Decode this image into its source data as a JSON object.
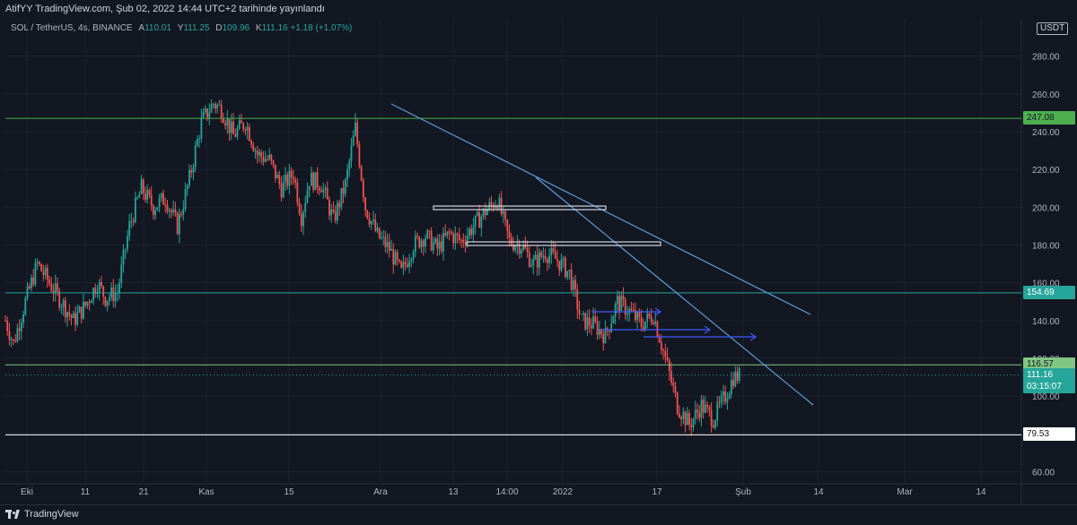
{
  "header": {
    "publish_text": "AtifYY TradingView.com, Şub 02, 2022 14:44 UTC+2 tarihinde yayınlandı"
  },
  "legend": {
    "symbol": "SOL / TetherUS, 4s, BINANCE",
    "open_label": "A",
    "open": "110.01",
    "high_label": "Y",
    "high": "111.25",
    "low_label": "D",
    "low": "109.96",
    "close_label": "K",
    "close": "111.16",
    "change": "+1.18 (+1.07%)"
  },
  "footer": {
    "brand": "TradingView"
  },
  "axis": {
    "currency": "USDT",
    "price_ticks": [
      "60.00",
      "80.00",
      "100.00",
      "120.00",
      "140.00",
      "160.00",
      "180.00",
      "200.00",
      "220.00",
      "240.00",
      "260.00",
      "280.00"
    ],
    "time_ticks": [
      "Eki",
      "11",
      "21",
      "Kas",
      "15",
      "Ara",
      "13",
      "14:00",
      "2022",
      "17",
      "Şub",
      "14",
      "Mar",
      "14"
    ]
  },
  "price_tags": [
    {
      "value": "247.08",
      "color": "#4caf50",
      "text_color": "#131722"
    },
    {
      "value": "154.69",
      "color": "#26a69a",
      "text_color": "#ffffff"
    },
    {
      "value": "116.57",
      "color": "#81c784",
      "text_color": "#131722"
    },
    {
      "value": "111.16",
      "sub": "03:15:07",
      "color": "#26a69a",
      "text_color": "#ffffff"
    },
    {
      "value": "79.53",
      "color": "#ffffff",
      "text_color": "#131722"
    }
  ],
  "chart_data": {
    "type": "candlestick",
    "symbol": "SOL / TetherUS",
    "interval": "4s",
    "exchange": "BINANCE",
    "ylim": [
      55,
      285
    ],
    "grid": true,
    "x_ticks": [
      "Eki",
      "11",
      "21",
      "Kas",
      "15",
      "Ara",
      "13",
      "14:00",
      "2022",
      "17",
      "Şub",
      "14",
      "Mar",
      "14"
    ],
    "path_points": [
      [
        0,
        140
      ],
      [
        4,
        128
      ],
      [
        10,
        150
      ],
      [
        16,
        170
      ],
      [
        22,
        160
      ],
      [
        28,
        150
      ],
      [
        34,
        140
      ],
      [
        40,
        148
      ],
      [
        46,
        160
      ],
      [
        50,
        152
      ],
      [
        56,
        155
      ],
      [
        62,
        190
      ],
      [
        68,
        210
      ],
      [
        74,
        200
      ],
      [
        80,
        205
      ],
      [
        86,
        190
      ],
      [
        92,
        215
      ],
      [
        98,
        245
      ],
      [
        104,
        255
      ],
      [
        108,
        252
      ],
      [
        114,
        238
      ],
      [
        120,
        245
      ],
      [
        126,
        228
      ],
      [
        132,
        225
      ],
      [
        138,
        210
      ],
      [
        144,
        218
      ],
      [
        148,
        195
      ],
      [
        152,
        215
      ],
      [
        158,
        212
      ],
      [
        164,
        193
      ],
      [
        170,
        212
      ],
      [
        175,
        242
      ],
      [
        180,
        200
      ],
      [
        186,
        185
      ],
      [
        192,
        178
      ],
      [
        198,
        165
      ],
      [
        204,
        180
      ],
      [
        210,
        185
      ],
      [
        216,
        178
      ],
      [
        222,
        186
      ],
      [
        228,
        182
      ],
      [
        234,
        190
      ],
      [
        240,
        198
      ],
      [
        246,
        204
      ],
      [
        252,
        182
      ],
      [
        258,
        180
      ],
      [
        264,
        170
      ],
      [
        270,
        176
      ],
      [
        276,
        172
      ],
      [
        282,
        165
      ],
      [
        288,
        140
      ],
      [
        294,
        138
      ],
      [
        300,
        132
      ],
      [
        306,
        150
      ],
      [
        312,
        145
      ],
      [
        318,
        138
      ],
      [
        324,
        143
      ],
      [
        330,
        120
      ],
      [
        336,
        95
      ],
      [
        342,
        85
      ],
      [
        348,
        95
      ],
      [
        354,
        88
      ],
      [
        360,
        100
      ],
      [
        364,
        110
      ],
      [
        368,
        111
      ]
    ],
    "horizontal_levels": [
      {
        "value": 247.08,
        "color": "#4caf50"
      },
      {
        "value": 154.69,
        "color": "#26a69a"
      },
      {
        "value": 116.57,
        "color": "#81c784"
      },
      {
        "value": 79.53,
        "color": "#ffffff"
      }
    ],
    "current_price": 111.16
  }
}
